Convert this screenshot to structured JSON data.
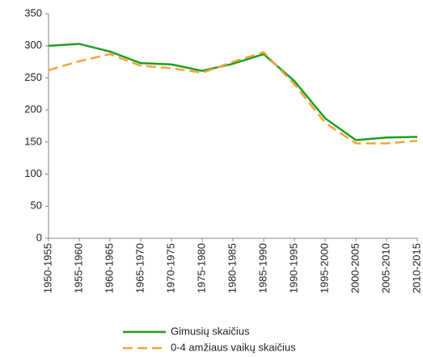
{
  "chart_data": {
    "type": "line",
    "categories": [
      "1950-1955",
      "1955-1960",
      "1960-1965",
      "1965-1970",
      "1970-1975",
      "1975-1980",
      "1980-1985",
      "1985-1990",
      "1990-1995",
      "1995-2000",
      "2000-2005",
      "2005-2010",
      "2010-2015"
    ],
    "series": [
      {
        "name": "Gimusių skaičius",
        "color": "#1f9e1f",
        "dashed": false,
        "values": [
          300,
          303,
          291,
          273,
          271,
          261,
          272,
          287,
          245,
          187,
          153,
          157,
          158
        ]
      },
      {
        "name": "0-4 amžiaus vaikų skaičius",
        "color": "#f5a33c",
        "dashed": true,
        "values": [
          262,
          276,
          287,
          269,
          265,
          258,
          275,
          290,
          240,
          180,
          148,
          148,
          152
        ]
      }
    ],
    "ylim": [
      0,
      350
    ],
    "yticks": [
      0,
      50,
      100,
      150,
      200,
      250,
      300,
      350
    ],
    "grid": false
  }
}
